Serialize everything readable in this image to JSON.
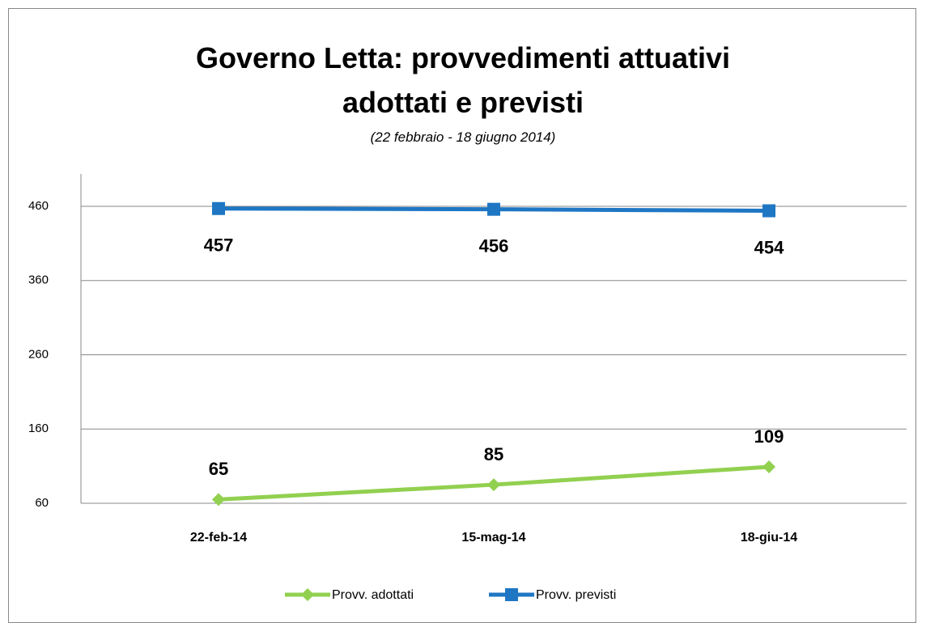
{
  "chart_data": {
    "type": "line",
    "title": "Governo Letta: provvedimenti attuativi adottati e previsti",
    "subtitle": "(22 febbraio - 18 giugno 2014)",
    "categories": [
      "22-feb-14",
      "15-mag-14",
      "18-giu-14"
    ],
    "series": [
      {
        "name": "Provv. adottati",
        "color": "#92d050",
        "marker": "diamond",
        "label_position": "above",
        "values": [
          65,
          85,
          109
        ]
      },
      {
        "name": "Provv. previsti",
        "color": "#1f77c4",
        "marker": "square",
        "label_position": "below",
        "values": [
          457,
          456,
          454
        ]
      }
    ],
    "ylim": [
      60,
      460
    ],
    "yticks": [
      60,
      160,
      260,
      360,
      460
    ],
    "grid": true,
    "legend": "bottom"
  }
}
